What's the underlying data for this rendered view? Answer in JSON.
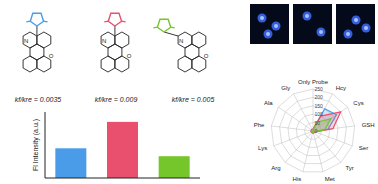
{
  "chart_data": [
    {
      "type": "bar",
      "y_label": "Fl Intensity (a.u.)",
      "categories": [
        null,
        null,
        null
      ],
      "values": [
        0.45,
        0.85,
        0.33
      ],
      "colors": [
        "#4a9ce8",
        "#e8506e",
        "#74c62a"
      ],
      "annotations": [
        "kf/kre = 0.0035",
        "kf/kre = 0.009",
        "kf/kre = 0.005"
      ],
      "ylim": [
        0,
        1
      ],
      "tick_labels": false,
      "grid": false
    },
    {
      "type": "radar",
      "categories": [
        "Only Probe",
        "Hcy",
        "Cys",
        "GSH",
        "Ser",
        "Tyr",
        "Met",
        "His",
        "Arg",
        "Lys",
        "Phe",
        "Ala",
        "Gly"
      ],
      "series": [
        {
          "color": "#4a9ce8",
          "values": [
            10,
            150,
            170,
            90,
            12,
            10,
            12,
            10,
            10,
            10,
            10,
            10,
            10
          ]
        },
        {
          "color": "#e8506e",
          "values": [
            12,
            100,
            200,
            120,
            14,
            12,
            12,
            12,
            12,
            12,
            12,
            12,
            12
          ]
        },
        {
          "color": "#74c62a",
          "values": [
            8,
            60,
            130,
            70,
            10,
            8,
            8,
            8,
            8,
            8,
            8,
            8,
            8
          ]
        }
      ],
      "ylim": [
        0,
        250
      ],
      "yticks": [
        0,
        50,
        100,
        150,
        200,
        250
      ],
      "grid": true
    }
  ]
}
